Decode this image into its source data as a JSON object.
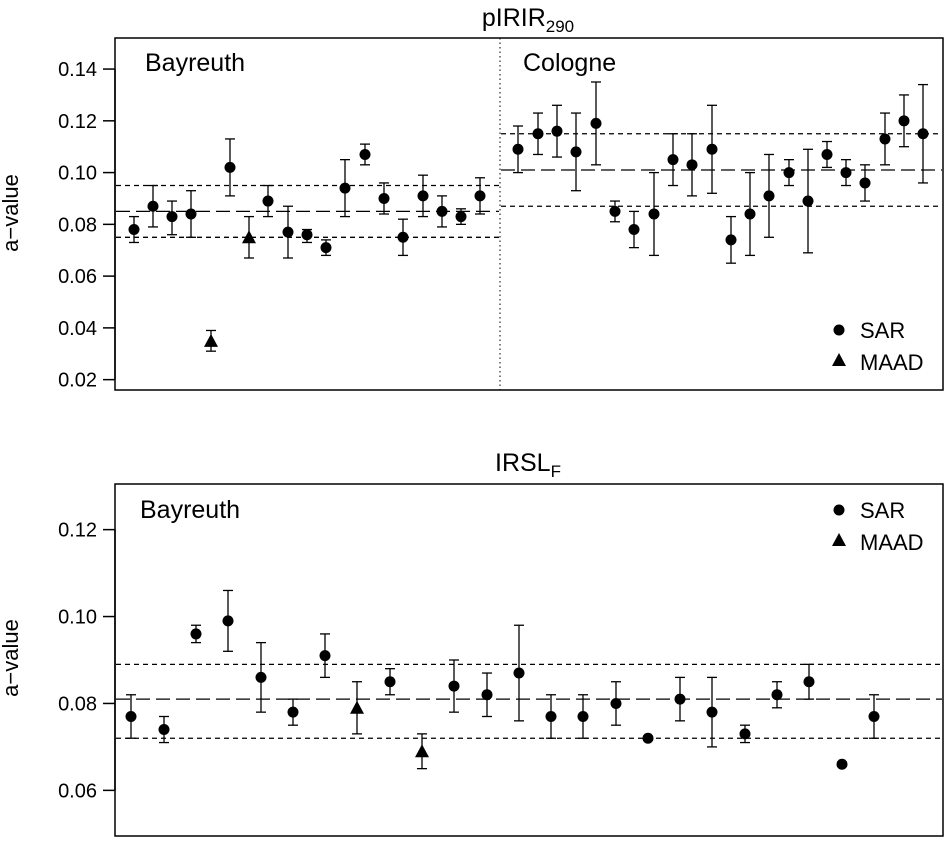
{
  "chart_data": [
    {
      "type": "scatter",
      "title": "pIRIR",
      "title_subscript": "290",
      "ylabel": "a−value",
      "xlabel": "",
      "ylim": [
        0.016,
        0.152
      ],
      "y_ticks": [
        "0.02",
        "0.04",
        "0.06",
        "0.08",
        "0.10",
        "0.12",
        "0.14"
      ],
      "legend": {
        "position": "bottom-right",
        "entries": [
          {
            "label": "SAR",
            "marker": "circle"
          },
          {
            "label": "MAAD",
            "marker": "triangle"
          }
        ]
      },
      "groups": [
        {
          "label": "Bayreuth",
          "reference_lines": [
            {
              "value": 0.085,
              "style": "long-dash"
            },
            {
              "value": 0.095,
              "style": "short-dash"
            },
            {
              "value": 0.075,
              "style": "short-dash"
            }
          ],
          "points": [
            {
              "y": 0.078,
              "lo": 0.073,
              "hi": 0.083,
              "marker": "circle"
            },
            {
              "y": 0.087,
              "lo": 0.079,
              "hi": 0.095,
              "marker": "circle"
            },
            {
              "y": 0.083,
              "lo": 0.076,
              "hi": 0.089,
              "marker": "circle"
            },
            {
              "y": 0.084,
              "lo": 0.075,
              "hi": 0.093,
              "marker": "circle"
            },
            {
              "y": 0.035,
              "lo": 0.031,
              "hi": 0.039,
              "marker": "triangle"
            },
            {
              "y": 0.102,
              "lo": 0.091,
              "hi": 0.113,
              "marker": "circle"
            },
            {
              "y": 0.075,
              "lo": 0.067,
              "hi": 0.083,
              "marker": "triangle"
            },
            {
              "y": 0.089,
              "lo": 0.083,
              "hi": 0.095,
              "marker": "circle"
            },
            {
              "y": 0.077,
              "lo": 0.067,
              "hi": 0.087,
              "marker": "circle"
            },
            {
              "y": 0.076,
              "lo": 0.073,
              "hi": 0.078,
              "marker": "circle"
            },
            {
              "y": 0.071,
              "lo": 0.068,
              "hi": 0.074,
              "marker": "circle"
            },
            {
              "y": 0.094,
              "lo": 0.083,
              "hi": 0.105,
              "marker": "circle"
            },
            {
              "y": 0.107,
              "lo": 0.103,
              "hi": 0.111,
              "marker": "circle"
            },
            {
              "y": 0.09,
              "lo": 0.084,
              "hi": 0.096,
              "marker": "circle"
            },
            {
              "y": 0.075,
              "lo": 0.068,
              "hi": 0.082,
              "marker": "circle"
            },
            {
              "y": 0.091,
              "lo": 0.083,
              "hi": 0.099,
              "marker": "circle"
            },
            {
              "y": 0.085,
              "lo": 0.079,
              "hi": 0.091,
              "marker": "circle"
            },
            {
              "y": 0.083,
              "lo": 0.08,
              "hi": 0.086,
              "marker": "circle"
            },
            {
              "y": 0.091,
              "lo": 0.084,
              "hi": 0.098,
              "marker": "circle"
            }
          ]
        },
        {
          "label": "Cologne",
          "reference_lines": [
            {
              "value": 0.101,
              "style": "long-dash"
            },
            {
              "value": 0.115,
              "style": "short-dash"
            },
            {
              "value": 0.087,
              "style": "short-dash"
            }
          ],
          "points": [
            {
              "y": 0.109,
              "lo": 0.1,
              "hi": 0.118,
              "marker": "circle"
            },
            {
              "y": 0.115,
              "lo": 0.107,
              "hi": 0.123,
              "marker": "circle"
            },
            {
              "y": 0.116,
              "lo": 0.106,
              "hi": 0.126,
              "marker": "circle"
            },
            {
              "y": 0.108,
              "lo": 0.093,
              "hi": 0.123,
              "marker": "circle"
            },
            {
              "y": 0.119,
              "lo": 0.103,
              "hi": 0.135,
              "marker": "circle"
            },
            {
              "y": 0.085,
              "lo": 0.081,
              "hi": 0.089,
              "marker": "circle"
            },
            {
              "y": 0.078,
              "lo": 0.071,
              "hi": 0.085,
              "marker": "circle"
            },
            {
              "y": 0.084,
              "lo": 0.068,
              "hi": 0.1,
              "marker": "circle"
            },
            {
              "y": 0.105,
              "lo": 0.095,
              "hi": 0.115,
              "marker": "circle"
            },
            {
              "y": 0.103,
              "lo": 0.091,
              "hi": 0.115,
              "marker": "circle"
            },
            {
              "y": 0.109,
              "lo": 0.092,
              "hi": 0.126,
              "marker": "circle"
            },
            {
              "y": 0.074,
              "lo": 0.065,
              "hi": 0.083,
              "marker": "circle"
            },
            {
              "y": 0.084,
              "lo": 0.068,
              "hi": 0.1,
              "marker": "circle"
            },
            {
              "y": 0.091,
              "lo": 0.075,
              "hi": 0.107,
              "marker": "circle"
            },
            {
              "y": 0.1,
              "lo": 0.095,
              "hi": 0.105,
              "marker": "circle"
            },
            {
              "y": 0.089,
              "lo": 0.069,
              "hi": 0.109,
              "marker": "circle"
            },
            {
              "y": 0.107,
              "lo": 0.102,
              "hi": 0.112,
              "marker": "circle"
            },
            {
              "y": 0.1,
              "lo": 0.095,
              "hi": 0.105,
              "marker": "circle"
            },
            {
              "y": 0.096,
              "lo": 0.089,
              "hi": 0.103,
              "marker": "circle"
            },
            {
              "y": 0.113,
              "lo": 0.103,
              "hi": 0.123,
              "marker": "circle"
            },
            {
              "y": 0.12,
              "lo": 0.11,
              "hi": 0.13,
              "marker": "circle"
            },
            {
              "y": 0.115,
              "lo": 0.096,
              "hi": 0.134,
              "marker": "circle"
            }
          ]
        }
      ]
    },
    {
      "type": "scatter",
      "title": "IRSL",
      "title_subscript": "F",
      "ylabel": "a−value",
      "xlabel": "",
      "ylim": [
        0.0495,
        0.1305
      ],
      "y_ticks": [
        "0.06",
        "0.08",
        "0.10",
        "0.12"
      ],
      "legend": {
        "position": "top-right",
        "entries": [
          {
            "label": "SAR",
            "marker": "circle"
          },
          {
            "label": "MAAD",
            "marker": "triangle"
          }
        ]
      },
      "groups": [
        {
          "label": "Bayreuth",
          "reference_lines": [
            {
              "value": 0.081,
              "style": "long-dash"
            },
            {
              "value": 0.089,
              "style": "short-dash"
            },
            {
              "value": 0.072,
              "style": "short-dash"
            }
          ],
          "points": [
            {
              "y": 0.077,
              "lo": 0.072,
              "hi": 0.082,
              "marker": "circle"
            },
            {
              "y": 0.074,
              "lo": 0.071,
              "hi": 0.077,
              "marker": "circle"
            },
            {
              "y": 0.096,
              "lo": 0.094,
              "hi": 0.098,
              "marker": "circle"
            },
            {
              "y": 0.099,
              "lo": 0.092,
              "hi": 0.106,
              "marker": "circle"
            },
            {
              "y": 0.086,
              "lo": 0.078,
              "hi": 0.094,
              "marker": "circle"
            },
            {
              "y": 0.078,
              "lo": 0.075,
              "hi": 0.081,
              "marker": "circle"
            },
            {
              "y": 0.091,
              "lo": 0.086,
              "hi": 0.096,
              "marker": "circle"
            },
            {
              "y": 0.079,
              "lo": 0.073,
              "hi": 0.085,
              "marker": "triangle"
            },
            {
              "y": 0.085,
              "lo": 0.082,
              "hi": 0.088,
              "marker": "circle"
            },
            {
              "y": 0.069,
              "lo": 0.065,
              "hi": 0.073,
              "marker": "triangle"
            },
            {
              "y": 0.084,
              "lo": 0.078,
              "hi": 0.09,
              "marker": "circle"
            },
            {
              "y": 0.082,
              "lo": 0.077,
              "hi": 0.087,
              "marker": "circle"
            },
            {
              "y": 0.087,
              "lo": 0.076,
              "hi": 0.098,
              "marker": "circle"
            },
            {
              "y": 0.077,
              "lo": 0.072,
              "hi": 0.082,
              "marker": "circle"
            },
            {
              "y": 0.077,
              "lo": 0.072,
              "hi": 0.082,
              "marker": "circle"
            },
            {
              "y": 0.08,
              "lo": 0.075,
              "hi": 0.085,
              "marker": "circle"
            },
            {
              "y": 0.072,
              "lo": 0.0715,
              "hi": 0.0725,
              "marker": "circle"
            },
            {
              "y": 0.081,
              "lo": 0.076,
              "hi": 0.086,
              "marker": "circle"
            },
            {
              "y": 0.078,
              "lo": 0.07,
              "hi": 0.086,
              "marker": "circle"
            },
            {
              "y": 0.073,
              "lo": 0.071,
              "hi": 0.075,
              "marker": "circle"
            },
            {
              "y": 0.082,
              "lo": 0.079,
              "hi": 0.085,
              "marker": "circle"
            },
            {
              "y": 0.085,
              "lo": 0.081,
              "hi": 0.089,
              "marker": "circle"
            },
            {
              "y": 0.066,
              "lo": 0.0655,
              "hi": 0.0665,
              "marker": "circle"
            },
            {
              "y": 0.077,
              "lo": 0.072,
              "hi": 0.082,
              "marker": "circle"
            }
          ]
        }
      ]
    }
  ]
}
